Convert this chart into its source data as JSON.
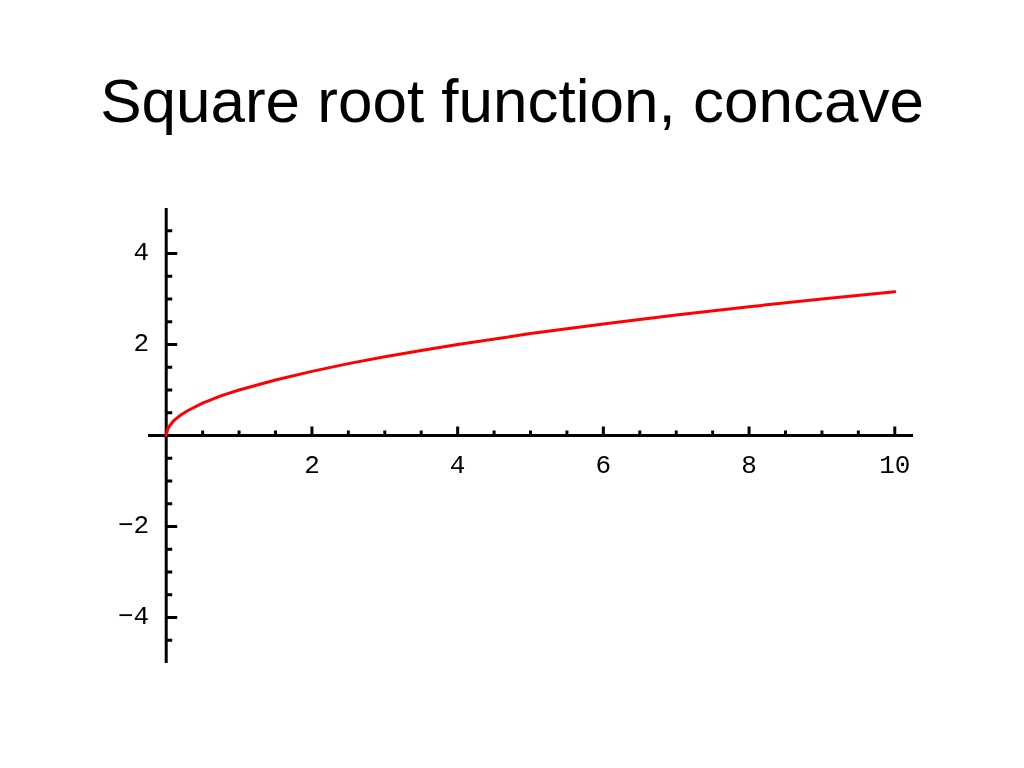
{
  "chart_data": {
    "type": "line",
    "title": "Square root function, concave",
    "x": [
      0,
      0.02,
      0.05,
      0.1,
      0.2,
      0.3,
      0.5,
      0.75,
      1,
      1.5,
      2,
      2.5,
      3,
      3.5,
      4,
      5,
      6,
      7,
      8,
      9,
      10
    ],
    "series": [
      {
        "color": "#ff0000",
        "values": [
          0,
          0.14,
          0.22,
          0.32,
          0.45,
          0.55,
          0.71,
          0.87,
          1,
          1.22,
          1.41,
          1.58,
          1.73,
          1.87,
          2,
          2.24,
          2.45,
          2.65,
          2.83,
          3,
          3.16
        ]
      }
    ],
    "xlim": [
      -0.25,
      10.25
    ],
    "ylim": [
      -5,
      5
    ],
    "xticks": [
      {
        "value": 0.5,
        "label": null
      },
      {
        "value": 1,
        "label": null
      },
      {
        "value": 1.5,
        "label": null
      },
      2,
      {
        "value": 2.5,
        "label": null
      },
      {
        "value": 3,
        "label": null
      },
      {
        "value": 3.5,
        "label": null
      },
      4,
      {
        "value": 4.5,
        "label": null
      },
      {
        "value": 5,
        "label": null
      },
      {
        "value": 5.5,
        "label": null
      },
      6,
      {
        "value": 6.5,
        "label": null
      },
      {
        "value": 7,
        "label": null
      },
      {
        "value": 7.5,
        "label": null
      },
      8,
      {
        "value": 8.5,
        "label": null
      },
      {
        "value": 9,
        "label": null
      },
      {
        "value": 9.5,
        "label": null
      },
      10
    ],
    "yticks": [
      {
        "value": -4.5,
        "label": null
      },
      {
        "value": -4,
        "label": "−4"
      },
      {
        "value": -3.5,
        "label": null
      },
      {
        "value": -3,
        "label": null
      },
      {
        "value": -2.5,
        "label": null
      },
      {
        "value": -2,
        "label": "−2"
      },
      {
        "value": -1.5,
        "label": null
      },
      {
        "value": -1,
        "label": null
      },
      {
        "value": -0.5,
        "label": null
      },
      {
        "value": 0.5,
        "label": null
      },
      {
        "value": 1,
        "label": null
      },
      {
        "value": 1.5,
        "label": null
      },
      2,
      {
        "value": 2.5,
        "label": null
      },
      {
        "value": 3,
        "label": null
      },
      {
        "value": 3.5,
        "label": null
      },
      4,
      {
        "value": 4.5,
        "label": null
      }
    ],
    "marker": "none",
    "line_style": "solid"
  }
}
